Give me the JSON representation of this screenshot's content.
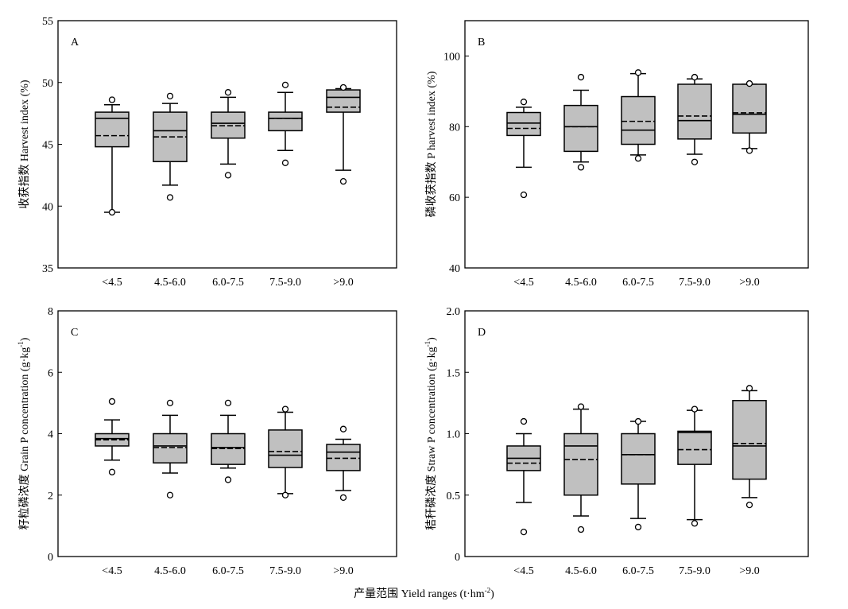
{
  "x_axis_title": {
    "text": "产量范围 Yield ranges (t·hm",
    "sup": "-2",
    "close": ")"
  },
  "chart_data": [
    {
      "type": "box",
      "panel_label": "A",
      "ylabel": "收获指数 Harvest index (%)",
      "ylabel_sup": "",
      "ylabel_end": "",
      "ylim": [
        35,
        55
      ],
      "yticks": [
        35,
        40,
        45,
        50,
        55
      ],
      "ytick_labels": [
        "35",
        "40",
        "45",
        "50",
        "55"
      ],
      "categories": [
        "<4.5",
        "4.5-6.0",
        "6.0-7.5",
        "7.5-9.0",
        ">9.0"
      ],
      "boxes": [
        {
          "whisker_low": 39.5,
          "q1": 44.8,
          "median": 47.1,
          "mean": 45.7,
          "q3": 47.6,
          "whisker_high": 48.2,
          "outliers": [
            39.5,
            48.6
          ]
        },
        {
          "whisker_low": 41.7,
          "q1": 43.6,
          "median": 46.1,
          "mean": 45.6,
          "q3": 47.6,
          "whisker_high": 48.3,
          "outliers": [
            40.7,
            48.9
          ]
        },
        {
          "whisker_low": 43.4,
          "q1": 45.5,
          "median": 46.7,
          "mean": 46.5,
          "q3": 47.6,
          "whisker_high": 48.8,
          "outliers": [
            42.5,
            49.2
          ]
        },
        {
          "whisker_low": 44.5,
          "q1": 46.1,
          "median": 47.1,
          "mean": 47.1,
          "q3": 47.6,
          "whisker_high": 49.2,
          "outliers": [
            43.5,
            49.8
          ]
        },
        {
          "whisker_low": 42.9,
          "q1": 47.6,
          "median": 48.8,
          "mean": 48.0,
          "q3": 49.4,
          "whisker_high": 49.5,
          "outliers": [
            42.0,
            49.6
          ]
        }
      ]
    },
    {
      "type": "box",
      "panel_label": "B",
      "ylabel": "磷收获指数 P harvest index (%)",
      "ylabel_sup": "",
      "ylabel_end": "",
      "ylim": [
        40,
        110
      ],
      "yticks": [
        40,
        60,
        80,
        100
      ],
      "ytick_labels": [
        "40",
        "60",
        "80",
        "100"
      ],
      "categories": [
        "<4.5",
        "4.5-6.0",
        "6.0-7.5",
        "7.5-9.0",
        ">9.0"
      ],
      "boxes": [
        {
          "whisker_low": 68.5,
          "q1": 77.5,
          "median": 81.0,
          "mean": 79.5,
          "q3": 84.0,
          "whisker_high": 85.5,
          "outliers": [
            60.7,
            87.0
          ]
        },
        {
          "whisker_low": 70.0,
          "q1": 73.0,
          "median": 80.0,
          "mean": 80.0,
          "q3": 86.0,
          "whisker_high": 90.3,
          "outliers": [
            68.5,
            94.0
          ]
        },
        {
          "whisker_low": 72.0,
          "q1": 75.0,
          "median": 79.0,
          "mean": 81.5,
          "q3": 88.5,
          "whisker_high": 95.0,
          "outliers": [
            71.0,
            95.3
          ]
        },
        {
          "whisker_low": 72.2,
          "q1": 76.5,
          "median": 81.7,
          "mean": 83.0,
          "q3": 92.0,
          "whisker_high": 93.5,
          "outliers": [
            70.0,
            94.0
          ]
        },
        {
          "whisker_low": 73.8,
          "q1": 78.2,
          "median": 83.5,
          "mean": 83.9,
          "q3": 92.0,
          "whisker_high": 92.0,
          "outliers": [
            73.2,
            92.2
          ]
        }
      ]
    },
    {
      "type": "box",
      "panel_label": "C",
      "ylabel": "籽粒磷浓度 Grain P concentration (g·kg",
      "ylabel_sup": "-1",
      "ylabel_end": ")",
      "ylim": [
        0,
        8
      ],
      "yticks": [
        0,
        2,
        4,
        6,
        8
      ],
      "ytick_labels": [
        "0",
        "2",
        "4",
        "6",
        "8"
      ],
      "categories": [
        "<4.5",
        "4.5-6.0",
        "6.0-7.5",
        "7.5-9.0",
        ">9.0"
      ],
      "boxes": [
        {
          "whisker_low": 3.14,
          "q1": 3.6,
          "median": 3.84,
          "mean": 3.8,
          "q3": 4.0,
          "whisker_high": 4.45,
          "outliers": [
            2.75,
            5.05
          ]
        },
        {
          "whisker_low": 2.72,
          "q1": 3.05,
          "median": 3.6,
          "mean": 3.55,
          "q3": 4.0,
          "whisker_high": 4.6,
          "outliers": [
            2.0,
            5.0
          ]
        },
        {
          "whisker_low": 2.88,
          "q1": 3.0,
          "median": 3.55,
          "mean": 3.52,
          "q3": 4.0,
          "whisker_high": 4.6,
          "outliers": [
            2.5,
            5.0
          ]
        },
        {
          "whisker_low": 2.05,
          "q1": 2.9,
          "median": 3.3,
          "mean": 3.42,
          "q3": 4.12,
          "whisker_high": 4.7,
          "outliers": [
            2.0,
            4.8
          ]
        },
        {
          "whisker_low": 2.15,
          "q1": 2.8,
          "median": 3.4,
          "mean": 3.2,
          "q3": 3.65,
          "whisker_high": 3.82,
          "outliers": [
            1.92,
            4.15
          ]
        }
      ]
    },
    {
      "type": "box",
      "panel_label": "D",
      "ylabel": "秸秆磷浓度 Straw P concentration (g·kg",
      "ylabel_sup": "-1",
      "ylabel_end": ")",
      "ylim": [
        0,
        2.0
      ],
      "yticks": [
        0,
        0.5,
        1.0,
        1.5,
        2.0
      ],
      "ytick_labels": [
        "0",
        "0.5",
        "1.0",
        "1.5",
        "2.0"
      ],
      "categories": [
        "<4.5",
        "4.5-6.0",
        "6.0-7.5",
        "7.5-9.0",
        ">9.0"
      ],
      "boxes": [
        {
          "whisker_low": 0.44,
          "q1": 0.7,
          "median": 0.8,
          "mean": 0.76,
          "q3": 0.9,
          "whisker_high": 1.0,
          "outliers": [
            0.2,
            1.1
          ]
        },
        {
          "whisker_low": 0.33,
          "q1": 0.5,
          "median": 0.9,
          "mean": 0.79,
          "q3": 1.0,
          "whisker_high": 1.2,
          "outliers": [
            0.22,
            1.22
          ]
        },
        {
          "whisker_low": 0.31,
          "q1": 0.59,
          "median": 0.83,
          "mean": 0.83,
          "q3": 1.0,
          "whisker_high": 1.1,
          "outliers": [
            0.24,
            1.1
          ]
        },
        {
          "whisker_low": 0.3,
          "q1": 0.75,
          "median": 1.01,
          "mean": 0.87,
          "q3": 1.02,
          "whisker_high": 1.19,
          "outliers": [
            0.27,
            1.2
          ]
        },
        {
          "whisker_low": 0.48,
          "q1": 0.63,
          "median": 0.9,
          "mean": 0.92,
          "q3": 1.27,
          "whisker_high": 1.35,
          "outliers": [
            0.42,
            1.37
          ]
        }
      ]
    }
  ],
  "colors": {
    "box_fill": "#c0c0c0",
    "stroke": "#000000",
    "background": "#ffffff"
  }
}
